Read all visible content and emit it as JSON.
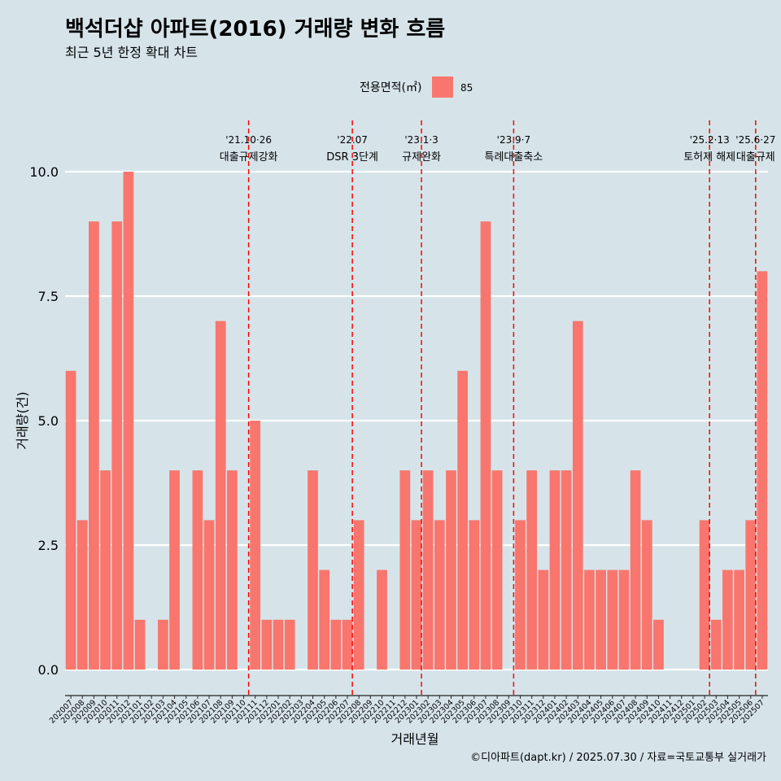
{
  "title": "백석더샵 아파트(2016) 거래량 변화 흐름",
  "subtitle": "최근 5년 한정 확대 차트",
  "legend": {
    "title": "전용면적(㎡)",
    "item_label": "85"
  },
  "caption": "©디아파트(dapt.kr) / 2025.07.30 / 자료=국토교통부 실거래가",
  "colors": {
    "background": "#d6e4ea",
    "bar": "#f8766d",
    "grid": "#ffffff",
    "event_line": "#ff0000"
  },
  "chart_data": {
    "type": "bar",
    "title": "백석더샵 아파트(2016) 거래량 변화 흐름",
    "subtitle": "최근 5년 한정 확대 차트",
    "xlabel": "거래년월",
    "ylabel": "거래량(건)",
    "ylim": [
      0,
      10.5
    ],
    "yticks": [
      "0.0",
      "2.5",
      "5.0",
      "7.5",
      "10.0"
    ],
    "grid": "horizontal",
    "legend_position": "top",
    "categories": [
      "202007",
      "202008",
      "202009",
      "202010",
      "202011",
      "202012",
      "202101",
      "202102",
      "202103",
      "202104",
      "202105",
      "202106",
      "202107",
      "202108",
      "202109",
      "202110",
      "202111",
      "202112",
      "202201",
      "202202",
      "202203",
      "202204",
      "202205",
      "202206",
      "202207",
      "202208",
      "202209",
      "202210",
      "202211",
      "202212",
      "202301",
      "202302",
      "202303",
      "202304",
      "202305",
      "202306",
      "202307",
      "202308",
      "202309",
      "202310",
      "202311",
      "202312",
      "202401",
      "202402",
      "202403",
      "202404",
      "202405",
      "202406",
      "202407",
      "202408",
      "202409",
      "202410",
      "202411",
      "202412",
      "202501",
      "202502",
      "202503",
      "202504",
      "202505",
      "202506",
      "202507"
    ],
    "series": [
      {
        "name": "85",
        "values": [
          6,
          3,
          9,
          4,
          9,
          10,
          1,
          0,
          1,
          4,
          0,
          4,
          3,
          7,
          4,
          0,
          5,
          1,
          1,
          1,
          0,
          4,
          2,
          1,
          1,
          3,
          0,
          2,
          0,
          4,
          3,
          4,
          3,
          4,
          6,
          3,
          9,
          4,
          0,
          3,
          4,
          2,
          4,
          4,
          7,
          2,
          2,
          2,
          2,
          4,
          3,
          1,
          0,
          0,
          0,
          3,
          1,
          2,
          2,
          3,
          8
        ]
      }
    ],
    "annotations": [
      {
        "x": "202110",
        "date": "'21.10·26",
        "label": "대출규제강화"
      },
      {
        "x": "202207",
        "date": "'22.07",
        "label": "DSR 3단계"
      },
      {
        "x": "202301",
        "date": "'23.1·3",
        "label": "규제완화"
      },
      {
        "x": "202309",
        "date": "'23.9·7",
        "label": "특례대출축소"
      },
      {
        "x": "202502",
        "date": "'25.2·13",
        "label": "토허제 해제"
      },
      {
        "x": "202506",
        "date": "'25.6·27",
        "label": "대출규제"
      }
    ]
  }
}
